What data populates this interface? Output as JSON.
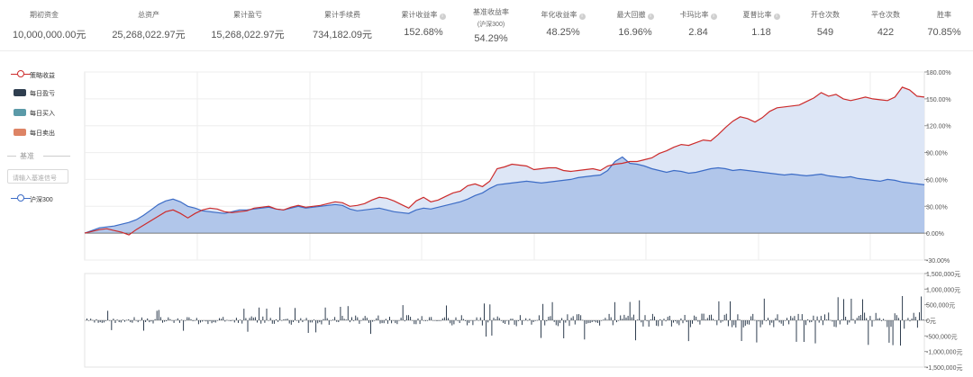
{
  "stats": [
    {
      "label": "期初资金",
      "value": "10,000,000.00元",
      "info": false
    },
    {
      "label": "总资产",
      "value": "25,268,022.97元",
      "info": false
    },
    {
      "label": "累计盈亏",
      "value": "15,268,022.97元",
      "info": false
    },
    {
      "label": "累计手续费",
      "value": "734,182.09元",
      "info": false
    },
    {
      "label": "累计收益率",
      "value": "152.68%",
      "info": true
    },
    {
      "label": "基准收益率",
      "sub": "(沪深300)",
      "value": "54.29%",
      "info": false
    },
    {
      "label": "年化收益率",
      "value": "48.25%",
      "info": true
    },
    {
      "label": "最大回撤",
      "value": "16.96%",
      "info": true
    },
    {
      "label": "卡玛比率",
      "value": "2.84",
      "info": true
    },
    {
      "label": "夏普比率",
      "value": "1.18",
      "info": true
    },
    {
      "label": "开仓次数",
      "value": "549",
      "info": false
    },
    {
      "label": "平仓次数",
      "value": "422",
      "info": false
    },
    {
      "label": "胜率",
      "value": "70.85%",
      "info": false
    }
  ],
  "legend": {
    "strategy": "策略收益",
    "daily_pnl": "每日盈亏",
    "daily_buy": "每日买入",
    "daily_sell": "每日卖出",
    "bench_title": "基准",
    "bench_placeholder": "请输入基准信号",
    "benchmark": "沪深300"
  },
  "colors": {
    "strategy": "#cc2b2b",
    "benchmark": "#3c6cc6",
    "strategy_fill": "#dde6f6",
    "benchmark_fill": "#a9c0e8",
    "daily_pnl": "#2f3e4f",
    "daily_buy": "#5b9aa8",
    "daily_sell": "#dd8465"
  },
  "chart_data": [
    {
      "type": "area",
      "y_ticks": [
        "180.00%",
        "150.00%",
        "120.00%",
        "90.00%",
        "60.00%",
        "30.00%",
        "0.00%",
        "-30.00%"
      ],
      "ylim": [
        -30,
        180
      ],
      "series": [
        {
          "name": "策略收益",
          "values": [
            0,
            2,
            4,
            5,
            3,
            1,
            -2,
            4,
            9,
            14,
            19,
            24,
            26,
            22,
            17,
            22,
            26,
            28,
            27,
            24,
            23,
            24,
            25,
            28,
            29,
            30,
            27,
            26,
            29,
            31,
            29,
            30,
            31,
            33,
            35,
            34,
            30,
            31,
            33,
            37,
            40,
            39,
            36,
            32,
            28,
            36,
            40,
            35,
            37,
            41,
            45,
            47,
            53,
            55,
            52,
            58,
            72,
            74,
            77,
            76,
            75,
            71,
            72,
            73,
            73,
            70,
            69,
            70,
            71,
            72,
            70,
            75,
            77,
            78,
            80,
            80,
            82,
            84,
            89,
            92,
            96,
            99,
            98,
            101,
            104,
            103,
            110,
            118,
            125,
            130,
            128,
            124,
            129,
            136,
            140,
            141,
            142,
            143,
            147,
            151,
            157,
            153,
            155,
            150,
            148,
            150,
            152,
            150,
            149,
            148,
            152,
            163,
            160,
            153,
            152
          ]
        },
        {
          "name": "沪深300",
          "values": [
            0,
            3,
            6,
            7,
            8,
            10,
            12,
            15,
            20,
            26,
            32,
            36,
            38,
            35,
            30,
            28,
            25,
            24,
            23,
            22,
            24,
            26,
            26,
            27,
            28,
            29,
            27,
            26,
            28,
            30,
            28,
            29,
            30,
            31,
            32,
            31,
            27,
            25,
            26,
            27,
            28,
            26,
            24,
            23,
            22,
            26,
            28,
            27,
            29,
            31,
            33,
            35,
            38,
            42,
            45,
            50,
            54,
            55,
            56,
            57,
            58,
            57,
            56,
            57,
            58,
            59,
            60,
            62,
            63,
            64,
            65,
            70,
            80,
            85,
            78,
            77,
            75,
            72,
            70,
            68,
            70,
            69,
            67,
            68,
            70,
            72,
            73,
            72,
            70,
            71,
            70,
            69,
            68,
            67,
            66,
            65,
            66,
            65,
            64,
            65,
            66,
            64,
            63,
            62,
            63,
            61,
            60,
            59,
            58,
            60,
            59,
            57,
            56,
            55,
            54
          ]
        }
      ]
    },
    {
      "type": "bar",
      "series_name": "每日盈亏",
      "y_ticks": [
        "1,500,000元",
        "1,000,000元",
        "500,000元",
        "0元",
        "-500,000元",
        "-1,000,000元",
        "-1,500,000元"
      ],
      "ylim": [
        -1500000,
        1500000
      ]
    }
  ]
}
